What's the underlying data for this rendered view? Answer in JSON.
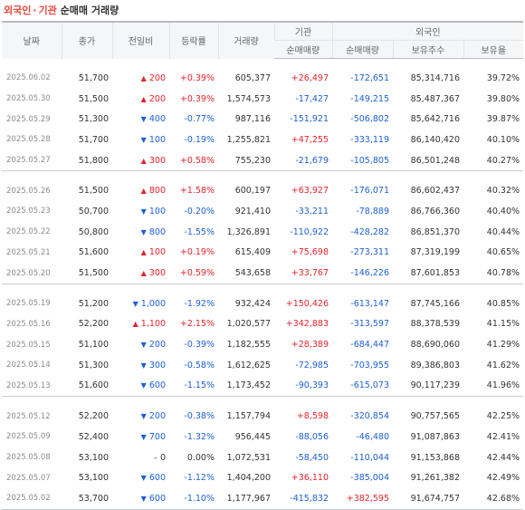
{
  "title": {
    "foreign": "외국인",
    "dot": "·",
    "inst": "기관",
    "rest": "순매매 거래량"
  },
  "headers": {
    "date": "날짜",
    "close": "종가",
    "change": "전일비",
    "rate": "등락률",
    "volume": "거래량",
    "inst_group": "기관",
    "foreign_group": "외국인",
    "inst_net": "순매매량",
    "foreign_net": "순매매량",
    "shares": "보유주수",
    "ratio": "보유율"
  },
  "groups": [
    [
      {
        "date": "2025.06.02",
        "close": "51,700",
        "dir": "up",
        "diff": "200",
        "rate": "+0.39%",
        "volume": "605,377",
        "inst": "+26,497",
        "foreign": "-172,651",
        "shares": "85,314,716",
        "ratio": "39.72%"
      },
      {
        "date": "2025.05.30",
        "close": "51,500",
        "dir": "up",
        "diff": "200",
        "rate": "+0.39%",
        "volume": "1,574,573",
        "inst": "-17,427",
        "foreign": "-149,215",
        "shares": "85,487,367",
        "ratio": "39.80%"
      },
      {
        "date": "2025.05.29",
        "close": "51,300",
        "dir": "down",
        "diff": "400",
        "rate": "-0.77%",
        "volume": "987,116",
        "inst": "-151,921",
        "foreign": "-506,802",
        "shares": "85,642,716",
        "ratio": "39.87%"
      },
      {
        "date": "2025.05.28",
        "close": "51,700",
        "dir": "down",
        "diff": "100",
        "rate": "-0.19%",
        "volume": "1,255,821",
        "inst": "+47,255",
        "foreign": "-333,119",
        "shares": "86,140,420",
        "ratio": "40.10%"
      },
      {
        "date": "2025.05.27",
        "close": "51,800",
        "dir": "up",
        "diff": "300",
        "rate": "+0.58%",
        "volume": "755,230",
        "inst": "-21,679",
        "foreign": "-105,805",
        "shares": "86,501,248",
        "ratio": "40.27%"
      }
    ],
    [
      {
        "date": "2025.05.26",
        "close": "51,500",
        "dir": "up",
        "diff": "800",
        "rate": "+1.58%",
        "volume": "600,197",
        "inst": "+63,927",
        "foreign": "-176,071",
        "shares": "86,602,437",
        "ratio": "40.32%"
      },
      {
        "date": "2025.05.23",
        "close": "50,700",
        "dir": "down",
        "diff": "100",
        "rate": "-0.20%",
        "volume": "921,410",
        "inst": "-33,211",
        "foreign": "-78,889",
        "shares": "86,766,360",
        "ratio": "40.40%"
      },
      {
        "date": "2025.05.22",
        "close": "50,800",
        "dir": "down",
        "diff": "800",
        "rate": "-1.55%",
        "volume": "1,326,891",
        "inst": "-110,922",
        "foreign": "-428,282",
        "shares": "86,851,370",
        "ratio": "40.44%"
      },
      {
        "date": "2025.05.21",
        "close": "51,600",
        "dir": "up",
        "diff": "100",
        "rate": "+0.19%",
        "volume": "615,409",
        "inst": "+75,698",
        "foreign": "-273,311",
        "shares": "87,319,199",
        "ratio": "40.65%"
      },
      {
        "date": "2025.05.20",
        "close": "51,500",
        "dir": "up",
        "diff": "300",
        "rate": "+0.59%",
        "volume": "543,658",
        "inst": "+33,767",
        "foreign": "-146,226",
        "shares": "87,601,853",
        "ratio": "40.78%"
      }
    ],
    [
      {
        "date": "2025.05.19",
        "close": "51,200",
        "dir": "down",
        "diff": "1,000",
        "rate": "-1.92%",
        "volume": "932,424",
        "inst": "+150,426",
        "foreign": "-613,147",
        "shares": "87,745,166",
        "ratio": "40.85%"
      },
      {
        "date": "2025.05.16",
        "close": "52,200",
        "dir": "up",
        "diff": "1,100",
        "rate": "+2.15%",
        "volume": "1,020,577",
        "inst": "+342,883",
        "foreign": "-313,597",
        "shares": "88,378,539",
        "ratio": "41.15%"
      },
      {
        "date": "2025.05.15",
        "close": "51,100",
        "dir": "down",
        "diff": "200",
        "rate": "-0.39%",
        "volume": "1,182,555",
        "inst": "+28,389",
        "foreign": "-684,447",
        "shares": "88,690,060",
        "ratio": "41.29%"
      },
      {
        "date": "2025.05.14",
        "close": "51,300",
        "dir": "down",
        "diff": "300",
        "rate": "-0.58%",
        "volume": "1,612,625",
        "inst": "-72,985",
        "foreign": "-703,955",
        "shares": "89,386,803",
        "ratio": "41.62%"
      },
      {
        "date": "2025.05.13",
        "close": "51,600",
        "dir": "down",
        "diff": "600",
        "rate": "-1.15%",
        "volume": "1,173,452",
        "inst": "-90,393",
        "foreign": "-615,073",
        "shares": "90,117,239",
        "ratio": "41.96%"
      }
    ],
    [
      {
        "date": "2025.05.12",
        "close": "52,200",
        "dir": "down",
        "diff": "200",
        "rate": "-0.38%",
        "volume": "1,157,794",
        "inst": "+8,598",
        "foreign": "-320,854",
        "shares": "90,757,565",
        "ratio": "42.25%"
      },
      {
        "date": "2025.05.09",
        "close": "52,400",
        "dir": "down",
        "diff": "700",
        "rate": "-1.32%",
        "volume": "956,445",
        "inst": "-88,056",
        "foreign": "-46,480",
        "shares": "91,087,863",
        "ratio": "42.41%"
      },
      {
        "date": "2025.05.08",
        "close": "53,100",
        "dir": "flat",
        "diff": "0",
        "rate": "0.00%",
        "volume": "1,072,531",
        "inst": "-58,450",
        "foreign": "-110,044",
        "shares": "91,153,868",
        "ratio": "42.44%"
      },
      {
        "date": "2025.05.07",
        "close": "53,100",
        "dir": "down",
        "diff": "600",
        "rate": "-1.12%",
        "volume": "1,404,200",
        "inst": "+36,110",
        "foreign": "-385,004",
        "shares": "91,261,382",
        "ratio": "42.49%"
      },
      {
        "date": "2025.05.02",
        "close": "53,700",
        "dir": "down",
        "diff": "600",
        "rate": "-1.10%",
        "volume": "1,177,967",
        "inst": "-415,832",
        "foreign": "+382,595",
        "shares": "91,674,757",
        "ratio": "42.68%"
      }
    ]
  ],
  "arrows": {
    "up": "▲",
    "down": "▼",
    "flat": "–"
  },
  "colors": {
    "up": "#e8222b",
    "down": "#1a5fd8",
    "title": "#e8473d"
  }
}
